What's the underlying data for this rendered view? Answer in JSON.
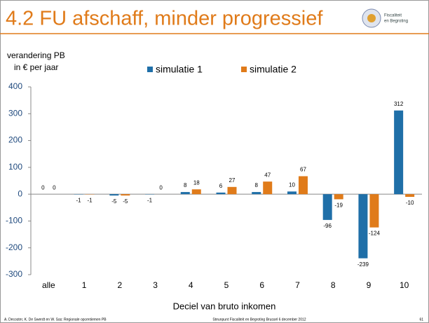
{
  "slide": {
    "title": "4.2 FU afschaff, minder progressief",
    "logo": [
      "Fiscaliteit",
      "en Begroting"
    ],
    "footer_left": "A. Decoster, K. De Swerdt en W. Sas: Regionale opcentiemen PB",
    "footer_center": "Steunpunt Fiscaliteit en Begroting Brussel 6 december 2012",
    "page_number": "61"
  },
  "chart_data": {
    "type": "bar",
    "y_label": [
      "verandering PB",
      "in € per jaar"
    ],
    "x_label": "Deciel van bruto inkomen",
    "categories": [
      "alle",
      "1",
      "2",
      "3",
      "4",
      "5",
      "6",
      "7",
      "8",
      "9",
      "10"
    ],
    "series": [
      {
        "name": "simulatie 1",
        "color": "#1f6fa8",
        "values": [
          0,
          -1,
          -5,
          -1,
          8,
          6,
          8,
          10,
          -96,
          -239,
          312
        ]
      },
      {
        "name": "simulatie 2",
        "color": "#e07b1a",
        "values": [
          0,
          -1,
          -5,
          0,
          18,
          27,
          47,
          67,
          -19,
          -124,
          -10
        ]
      }
    ],
    "ylim": [
      -300,
      400
    ],
    "yticks": [
      -300,
      -200,
      -100,
      0,
      100,
      200,
      300,
      400
    ],
    "grid": false,
    "legend": "top"
  }
}
